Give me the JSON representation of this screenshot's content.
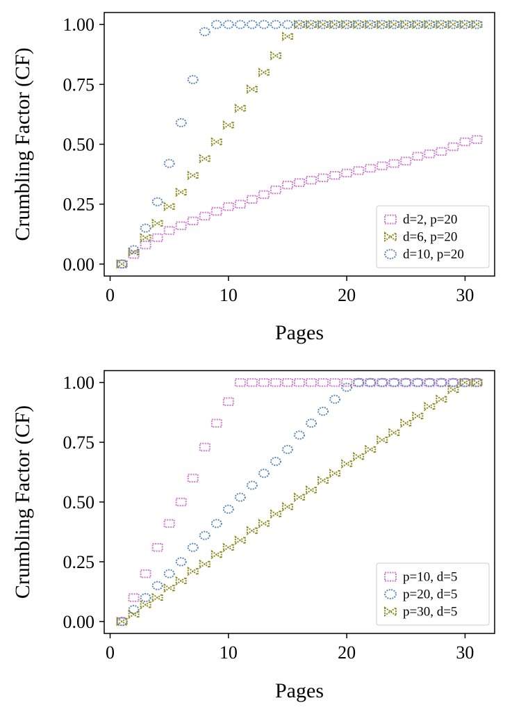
{
  "chart_data": [
    {
      "type": "scatter",
      "xlabel": "Pages",
      "ylabel": "Crumbling Factor (CF)",
      "xlim": [
        -0.5,
        32.5
      ],
      "ylim": [
        -0.05,
        1.05
      ],
      "xticks": [
        "0",
        "10",
        "20",
        "30"
      ],
      "yticks": [
        "0.00",
        "0.25",
        "0.50",
        "0.75",
        "1.00"
      ],
      "grid": false,
      "legend_position": "lower-right",
      "series": [
        {
          "name": "d=2, p=20",
          "color": "#cc79cc",
          "marker": "square",
          "points": [
            [
              1,
              0
            ],
            [
              2,
              0.04
            ],
            [
              3,
              0.08
            ],
            [
              4,
              0.11
            ],
            [
              5,
              0.14
            ],
            [
              6,
              0.16
            ],
            [
              7,
              0.18
            ],
            [
              8,
              0.2
            ],
            [
              9,
              0.22
            ],
            [
              10,
              0.24
            ],
            [
              11,
              0.25
            ],
            [
              12,
              0.27
            ],
            [
              13,
              0.29
            ],
            [
              14,
              0.31
            ],
            [
              15,
              0.33
            ],
            [
              16,
              0.34
            ],
            [
              17,
              0.35
            ],
            [
              18,
              0.36
            ],
            [
              19,
              0.37
            ],
            [
              20,
              0.38
            ],
            [
              21,
              0.39
            ],
            [
              22,
              0.4
            ],
            [
              23,
              0.41
            ],
            [
              24,
              0.42
            ],
            [
              25,
              0.43
            ],
            [
              26,
              0.45
            ],
            [
              27,
              0.46
            ],
            [
              28,
              0.47
            ],
            [
              29,
              0.49
            ],
            [
              30,
              0.51
            ],
            [
              31,
              0.52
            ]
          ]
        },
        {
          "name": "d=6, p=20",
          "color": "#8a8a1e",
          "marker": "bowtie",
          "points": [
            [
              1,
              0
            ],
            [
              2,
              0.05
            ],
            [
              3,
              0.11
            ],
            [
              4,
              0.17
            ],
            [
              5,
              0.24
            ],
            [
              6,
              0.3
            ],
            [
              7,
              0.37
            ],
            [
              8,
              0.44
            ],
            [
              9,
              0.51
            ],
            [
              10,
              0.58
            ],
            [
              11,
              0.65
            ],
            [
              12,
              0.73
            ],
            [
              13,
              0.8
            ],
            [
              14,
              0.87
            ],
            [
              15,
              0.95
            ],
            [
              16,
              1
            ],
            [
              17,
              1
            ],
            [
              18,
              1
            ],
            [
              19,
              1
            ],
            [
              20,
              1
            ],
            [
              21,
              1
            ],
            [
              22,
              1
            ],
            [
              23,
              1
            ],
            [
              24,
              1
            ],
            [
              25,
              1
            ],
            [
              26,
              1
            ],
            [
              27,
              1
            ],
            [
              28,
              1
            ],
            [
              29,
              1
            ],
            [
              30,
              1
            ],
            [
              31,
              1
            ]
          ]
        },
        {
          "name": "d=10, p=20",
          "color": "#5b86b8",
          "marker": "circle",
          "points": [
            [
              1,
              0
            ],
            [
              2,
              0.06
            ],
            [
              3,
              0.15
            ],
            [
              4,
              0.26
            ],
            [
              5,
              0.42
            ],
            [
              6,
              0.59
            ],
            [
              7,
              0.77
            ],
            [
              8,
              0.97
            ],
            [
              9,
              1
            ],
            [
              10,
              1
            ],
            [
              11,
              1
            ],
            [
              12,
              1
            ],
            [
              13,
              1
            ],
            [
              14,
              1
            ],
            [
              15,
              1
            ],
            [
              16,
              1
            ],
            [
              17,
              1
            ],
            [
              18,
              1
            ],
            [
              19,
              1
            ],
            [
              20,
              1
            ],
            [
              21,
              1
            ],
            [
              22,
              1
            ],
            [
              23,
              1
            ],
            [
              24,
              1
            ],
            [
              25,
              1
            ],
            [
              26,
              1
            ],
            [
              27,
              1
            ],
            [
              28,
              1
            ],
            [
              29,
              1
            ],
            [
              30,
              1
            ],
            [
              31,
              1
            ]
          ]
        }
      ]
    },
    {
      "type": "scatter",
      "xlabel": "Pages",
      "ylabel": "Crumbling Factor (CF)",
      "xlim": [
        -0.5,
        32.5
      ],
      "ylim": [
        -0.05,
        1.05
      ],
      "xticks": [
        "0",
        "10",
        "20",
        "30"
      ],
      "yticks": [
        "0.00",
        "0.25",
        "0.50",
        "0.75",
        "1.00"
      ],
      "grid": false,
      "legend_position": "lower-right",
      "series": [
        {
          "name": "p=10, d=5",
          "color": "#cc79cc",
          "marker": "square",
          "points": [
            [
              1,
              0
            ],
            [
              2,
              0.1
            ],
            [
              3,
              0.2
            ],
            [
              4,
              0.31
            ],
            [
              5,
              0.41
            ],
            [
              6,
              0.5
            ],
            [
              7,
              0.6
            ],
            [
              8,
              0.73
            ],
            [
              9,
              0.83
            ],
            [
              10,
              0.92
            ],
            [
              11,
              1
            ],
            [
              12,
              1
            ],
            [
              13,
              1
            ],
            [
              14,
              1
            ],
            [
              15,
              1
            ],
            [
              16,
              1
            ],
            [
              17,
              1
            ],
            [
              18,
              1
            ],
            [
              19,
              1
            ],
            [
              20,
              1
            ],
            [
              21,
              1
            ],
            [
              22,
              1
            ],
            [
              23,
              1
            ],
            [
              24,
              1
            ],
            [
              25,
              1
            ],
            [
              26,
              1
            ],
            [
              27,
              1
            ],
            [
              28,
              1
            ],
            [
              29,
              1
            ],
            [
              30,
              1
            ],
            [
              31,
              1
            ]
          ]
        },
        {
          "name": "p=20, d=5",
          "color": "#5b86b8",
          "marker": "circle",
          "points": [
            [
              1,
              0
            ],
            [
              2,
              0.05
            ],
            [
              3,
              0.1
            ],
            [
              4,
              0.15
            ],
            [
              5,
              0.2
            ],
            [
              6,
              0.25
            ],
            [
              7,
              0.31
            ],
            [
              8,
              0.36
            ],
            [
              9,
              0.41
            ],
            [
              10,
              0.47
            ],
            [
              11,
              0.52
            ],
            [
              12,
              0.57
            ],
            [
              13,
              0.62
            ],
            [
              14,
              0.67
            ],
            [
              15,
              0.72
            ],
            [
              16,
              0.78
            ],
            [
              17,
              0.83
            ],
            [
              18,
              0.88
            ],
            [
              19,
              0.93
            ],
            [
              20,
              0.98
            ],
            [
              21,
              1
            ],
            [
              22,
              1
            ],
            [
              23,
              1
            ],
            [
              24,
              1
            ],
            [
              25,
              1
            ],
            [
              26,
              1
            ],
            [
              27,
              1
            ],
            [
              28,
              1
            ],
            [
              29,
              1
            ],
            [
              30,
              1
            ],
            [
              31,
              1
            ]
          ]
        },
        {
          "name": "p=30, d=5",
          "color": "#8a8a1e",
          "marker": "bowtie",
          "points": [
            [
              1,
              0
            ],
            [
              2,
              0.03
            ],
            [
              3,
              0.07
            ],
            [
              4,
              0.1
            ],
            [
              5,
              0.14
            ],
            [
              6,
              0.17
            ],
            [
              7,
              0.21
            ],
            [
              8,
              0.24
            ],
            [
              9,
              0.28
            ],
            [
              10,
              0.31
            ],
            [
              11,
              0.34
            ],
            [
              12,
              0.38
            ],
            [
              13,
              0.41
            ],
            [
              14,
              0.45
            ],
            [
              15,
              0.48
            ],
            [
              16,
              0.52
            ],
            [
              17,
              0.55
            ],
            [
              18,
              0.59
            ],
            [
              19,
              0.62
            ],
            [
              20,
              0.66
            ],
            [
              21,
              0.69
            ],
            [
              22,
              0.72
            ],
            [
              23,
              0.76
            ],
            [
              24,
              0.79
            ],
            [
              25,
              0.83
            ],
            [
              26,
              0.86
            ],
            [
              27,
              0.9
            ],
            [
              28,
              0.93
            ],
            [
              29,
              0.97
            ],
            [
              30,
              1
            ],
            [
              31,
              1
            ]
          ]
        }
      ]
    }
  ]
}
